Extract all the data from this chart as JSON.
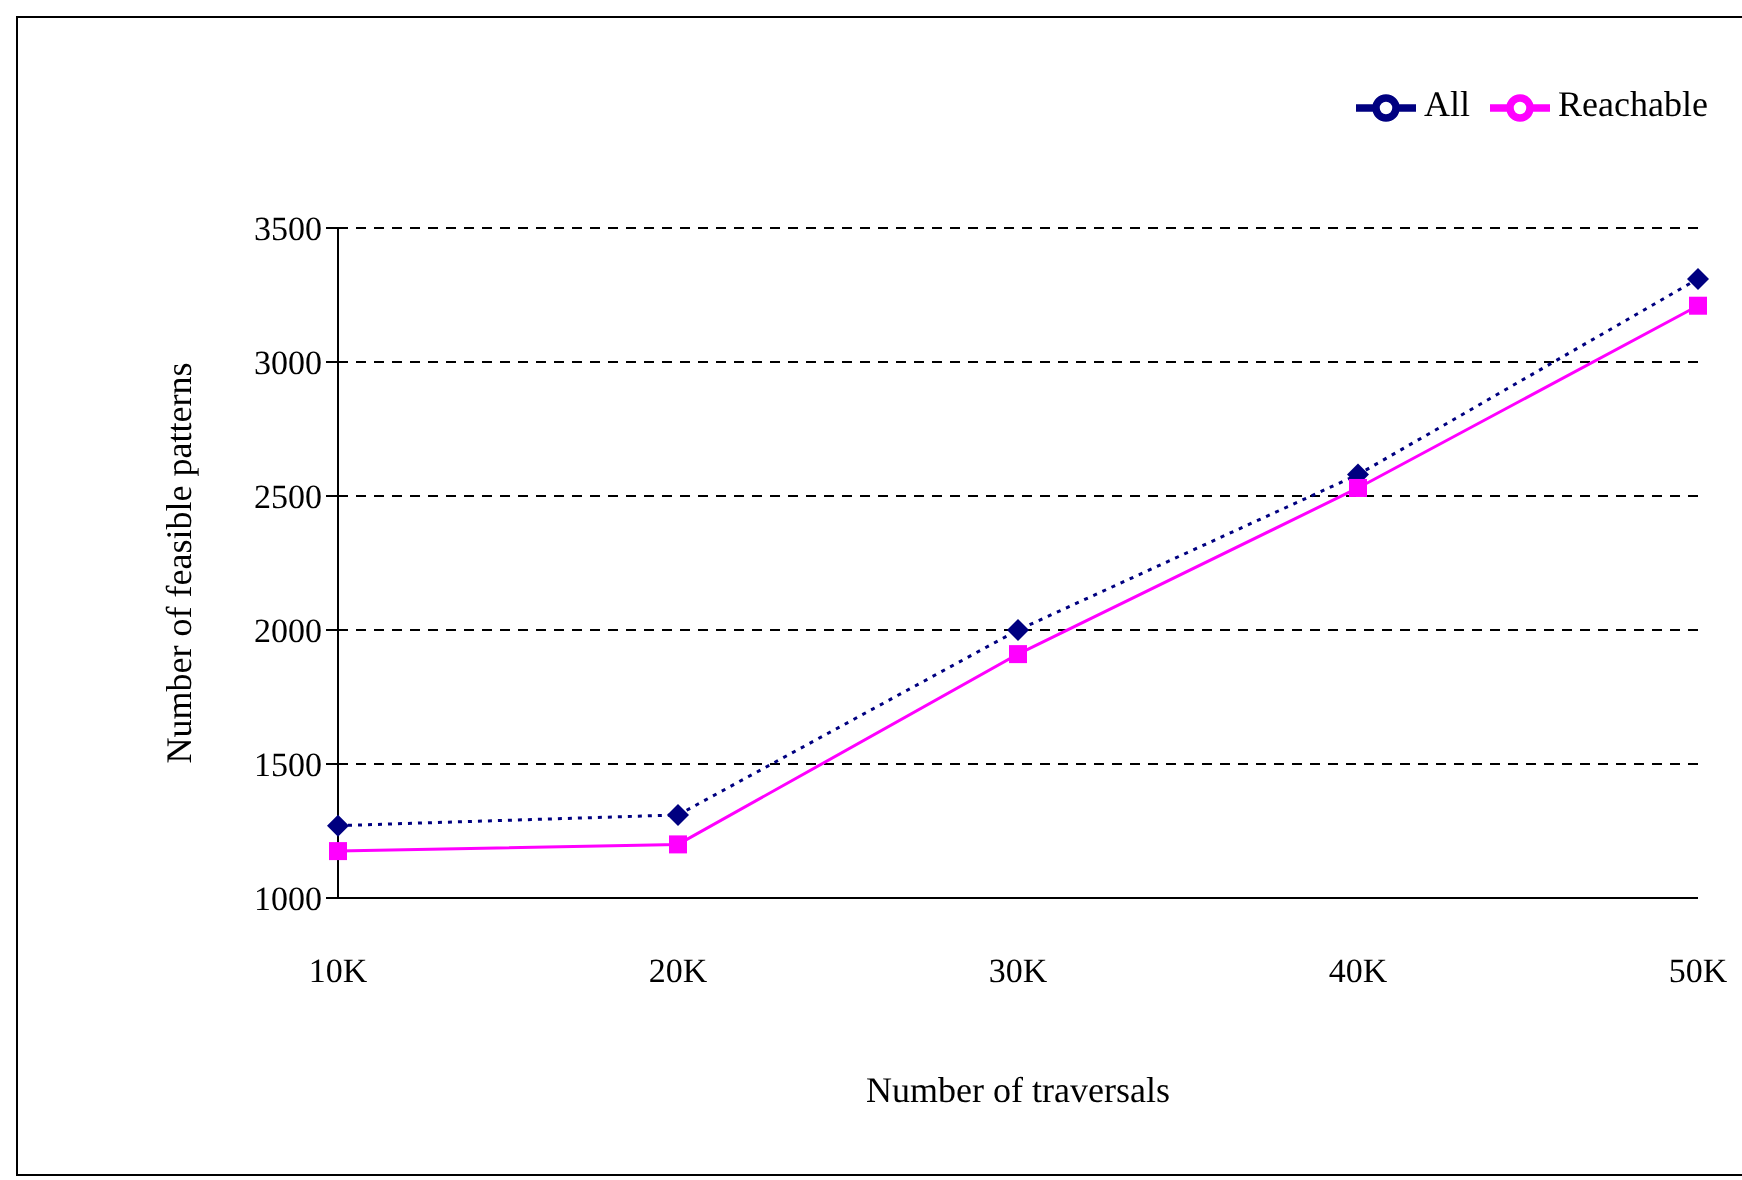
{
  "chart_data": {
    "type": "line",
    "xlabel": "Number of traversals",
    "ylabel": "Number of feasible patterns",
    "categories": [
      "10K",
      "20K",
      "30K",
      "40K",
      "50K"
    ],
    "series": [
      {
        "name": "All",
        "color": "#000080",
        "marker": "diamond",
        "line_style": "dotted",
        "values": [
          1270,
          1310,
          2000,
          2580,
          3310
        ]
      },
      {
        "name": "Reachable",
        "color": "#ff00ff",
        "marker": "square",
        "line_style": "solid",
        "values": [
          1175,
          1200,
          1910,
          2530,
          3210
        ]
      }
    ],
    "ylim": [
      1000,
      3500
    ],
    "yticks": [
      1000,
      1500,
      2000,
      2500,
      3000,
      3500
    ],
    "grid": "y",
    "legend": "top right"
  }
}
